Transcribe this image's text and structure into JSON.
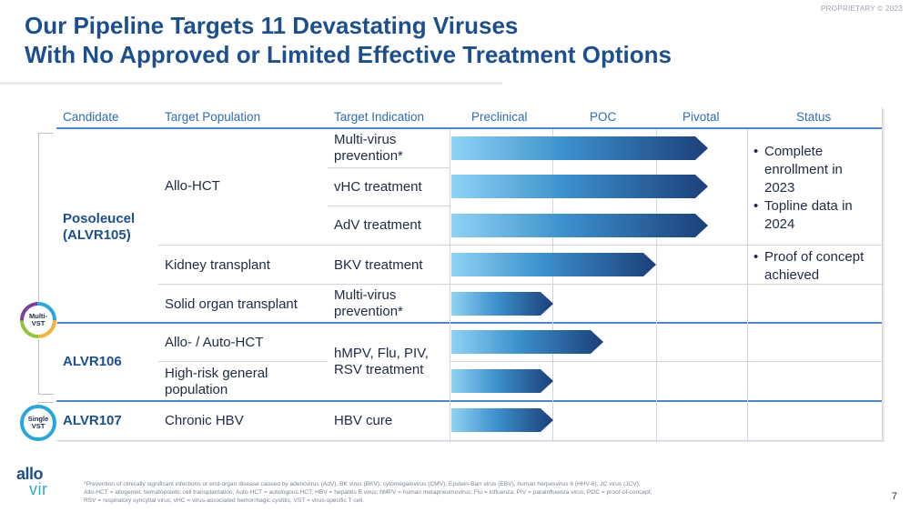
{
  "proprietary": "PROPRIETARY © 2023",
  "title": {
    "line1": "Our Pipeline Targets 11 Devastating Viruses",
    "line2": "With No Approved or Limited Effective Treatment Options"
  },
  "headers": {
    "candidate": "Candidate",
    "target_population": "Target Population",
    "target_indication": "Target Indication",
    "preclinical": "Preclinical",
    "poc": "POC",
    "pivotal": "Pivotal",
    "status": "Status"
  },
  "candidates": {
    "posoleucel_line1": "Posoleucel",
    "posoleucel_line2": "(ALVR105)",
    "alvr106": "ALVR106",
    "alvr107": "ALVR107"
  },
  "populations": {
    "allo_hct": "Allo-HCT",
    "kidney": "Kidney transplant",
    "solid_organ": "Solid organ transplant",
    "allo_auto": "Allo- / Auto-HCT",
    "high_risk_line1": "High-risk general",
    "high_risk_line2": "population",
    "chronic_hbv": "Chronic HBV"
  },
  "indications": {
    "multi_virus_1_line1": "Multi-virus",
    "multi_virus_1_line2": "prevention*",
    "vhc": "vHC treatment",
    "adv": "AdV treatment",
    "bkv": "BKV treatment",
    "multi_virus_2_line1": "Multi-virus",
    "multi_virus_2_line2": "prevention*",
    "hmpv_line1": "hMPV, Flu, PIV,",
    "hmpv_line2": "RSV treatment",
    "hbv": "HBV cure"
  },
  "progress": [
    {
      "row": "Multi-virus prevention (Posoleucel)",
      "stage": "Pivotal"
    },
    {
      "row": "vHC treatment",
      "stage": "Pivotal"
    },
    {
      "row": "AdV treatment",
      "stage": "Pivotal"
    },
    {
      "row": "BKV treatment",
      "stage": "POC"
    },
    {
      "row": "Multi-virus prevention (Solid organ)",
      "stage": "Preclinical"
    },
    {
      "row": "Allo- / Auto-HCT",
      "stage": "POC"
    },
    {
      "row": "High-risk general population",
      "stage": "Preclinical"
    },
    {
      "row": "HBV cure",
      "stage": "Preclinical"
    }
  ],
  "status": {
    "s1_line1": "Complete",
    "s1_line2": "enrollment in",
    "s1_line3": "2023",
    "s2_line1": "Topline data in",
    "s2_line2": "2024",
    "s3_line1": "Proof of concept",
    "s3_line2": "achieved"
  },
  "badges": {
    "multi_line1": "Multi-",
    "multi_line2": "VST",
    "single_line1": "Single",
    "single_line2": "VST"
  },
  "logo": {
    "line1": "allo",
    "line2": "vir"
  },
  "footnote": {
    "line1": "*Prevention of clinically significant infections or end-organ disease caused by adenovirus (AdV), BK virus (BKV), cytomegalovirus (CMV), Epstein-Barr virus (EBV), human herpesvirus 6 (HHV-6), JC virus (JCV).",
    "line2": "Allo-HCT = allogeneic hematopoietic cell transplantation; Auto-HCT = autologous HCT; HBV = hepatitis B virus; hMPV = human metapneumovirus; Flu = influenza; PIV = parainfluenza virus; POC = proof-of-concept;",
    "line3": "RSV = respiratory syncytial virus; vHC = virus-associated hemorrhagic cystitis; VST = virus-specific T cell."
  },
  "page_number": "7",
  "colors": {
    "title": "#1d4f8c",
    "header_text": "#2f6db0",
    "arrow_start": "#8fd3f4",
    "arrow_end": "#1c3f7a"
  }
}
